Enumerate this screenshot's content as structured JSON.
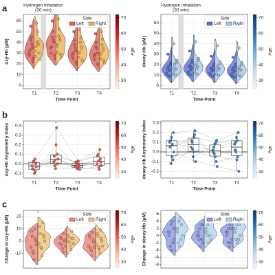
{
  "chart_data": [
    {
      "type": "split-violin",
      "panel_label": "a",
      "annotation": [
        "Hydrogen inhalation",
        "(30 min)"
      ],
      "ylabel": "oxy-Hb (μM)",
      "xlabel": "Time Point",
      "categories": [
        "T1",
        "T2",
        "T3",
        "T4"
      ],
      "legend_title": "Side",
      "legend": "upper right",
      "grid": true,
      "series": [
        {
          "name": "Left",
          "color": "#e0605a",
          "values": [
            [
              30,
              35,
              42,
              28,
              25,
              45,
              33,
              22,
              38,
              55
            ],
            [
              35,
              40,
              45,
              30,
              28,
              50,
              36,
              25,
              42,
              60
            ],
            [
              28,
              32,
              38,
              25,
              22,
              42,
              30,
              20,
              35,
              50
            ],
            [
              27,
              30,
              36,
              24,
              20,
              40,
              29,
              19,
              34,
              48
            ]
          ]
        },
        {
          "name": "Right",
          "color": "#f0b354",
          "values": [
            [
              32,
              38,
              40,
              27,
              30,
              50,
              36,
              24,
              41,
              58
            ],
            [
              36,
              42,
              46,
              31,
              29,
              52,
              38,
              26,
              44,
              62
            ],
            [
              30,
              34,
              40,
              26,
              24,
              44,
              31,
              22,
              36,
              52
            ],
            [
              29,
              33,
              38,
              25,
              23,
              43,
              30,
              21,
              35,
              50
            ]
          ]
        }
      ],
      "ylim": [
        -3,
        66
      ],
      "yticks": [
        0,
        10,
        20,
        30,
        40,
        50,
        60
      ],
      "colorbar": {
        "label": "Age",
        "colors": [
          "#fff0ea",
          "#fcbba1",
          "#fb6a4a",
          "#cb181d",
          "#67000d"
        ],
        "lim": [
          25,
          72
        ],
        "ticks": [
          30,
          40,
          50,
          60,
          70
        ]
      }
    },
    {
      "type": "split-violin",
      "annotation": [
        "Hydrogen inhalation",
        "(30 min)"
      ],
      "ylabel": "deoxy-Hb (μM)",
      "xlabel": "Time Point",
      "categories": [
        "T1",
        "T2",
        "T3",
        "T4"
      ],
      "legend_title": "Side",
      "legend": "upper right",
      "grid": true,
      "series": [
        {
          "name": "Left",
          "color": "#5b6fd6",
          "values": [
            [
              12,
              15,
              18,
              10,
              20,
              14,
              16,
              22,
              9,
              30
            ],
            [
              13,
              17,
              19,
              11,
              22,
              15,
              18,
              24,
              10,
              33
            ],
            [
              12,
              15,
              17,
              10,
              19,
              14,
              16,
              21,
              9,
              28
            ],
            [
              11,
              14,
              17,
              9,
              18,
              13,
              15,
              20,
              8,
              27
            ]
          ]
        },
        {
          "name": "Right",
          "color": "#a9c9e8",
          "values": [
            [
              13,
              16,
              20,
              11,
              22,
              15,
              17,
              24,
              10,
              40
            ],
            [
              14,
              18,
              21,
              12,
              24,
              16,
              19,
              26,
              11,
              42
            ],
            [
              13,
              16,
              19,
              11,
              21,
              15,
              17,
              23,
              10,
              38
            ],
            [
              12,
              15,
              18,
              10,
              20,
              14,
              16,
              22,
              9,
              36
            ]
          ]
        }
      ],
      "ylim": [
        -3,
        68
      ],
      "yticks": [
        0,
        10,
        20,
        30,
        40,
        50,
        60
      ],
      "colorbar": {
        "label": "Age",
        "colors": [
          "#f0f6fc",
          "#c6dbef",
          "#6baed6",
          "#2171b5",
          "#08306b"
        ],
        "lim": [
          25,
          72
        ],
        "ticks": [
          30,
          40,
          50,
          60,
          70
        ]
      }
    },
    {
      "type": "box-strip",
      "panel_label": "b",
      "ylabel": "oxy-Hb Asymmetry Index",
      "xlabel": "Time Point",
      "categories": [
        "T1",
        "T2",
        "T3",
        "T4"
      ],
      "grid": true,
      "point_color": "#e05a52",
      "hline": 0,
      "star": {
        "label": "*",
        "category": 1
      },
      "values": [
        [
          -0.02,
          -0.08,
          0.03,
          -0.05,
          0.0,
          -0.1,
          0.02,
          -0.03,
          0.05,
          -0.06
        ],
        [
          0.02,
          0.1,
          -0.05,
          0.08,
          0.0,
          0.2,
          -0.02,
          0.05,
          0.38,
          0.04
        ],
        [
          -0.03,
          0.0,
          -0.05,
          0.02,
          -0.02,
          -0.04,
          0.01,
          -0.06,
          0.03,
          -0.01
        ],
        [
          0.0,
          0.05,
          -0.04,
          0.08,
          0.02,
          -0.06,
          0.1,
          -0.02,
          0.15,
          0.03
        ]
      ],
      "ylim": [
        -0.15,
        0.45
      ],
      "yticks": [
        -0.1,
        {
          "value": 0,
          "label": "0.0"
        },
        0.1,
        0.2,
        0.3,
        0.4
      ],
      "colorbar": {
        "label": "Age",
        "colors": [
          "#fff0ea",
          "#fcbba1",
          "#fb6a4a",
          "#cb181d",
          "#67000d"
        ],
        "lim": [
          25,
          72
        ],
        "ticks": [
          30,
          40,
          50,
          60,
          70
        ]
      }
    },
    {
      "type": "box-strip",
      "ylabel": "deoxy-Hb Asymmetry Index",
      "xlabel": "Time Point",
      "categories": [
        "T1",
        "T2",
        "T3",
        "T4"
      ],
      "grid": true,
      "point_color": "#3f7fbf",
      "hline": 0,
      "values": [
        [
          0.1,
          -0.08,
          0.15,
          0.05,
          0.2,
          -0.05,
          0.12,
          0.0,
          0.08,
          -0.12
        ],
        [
          0.05,
          0.18,
          -0.05,
          0.12,
          0.22,
          0.0,
          0.1,
          -0.1,
          0.15,
          0.03
        ],
        [
          0.02,
          -0.1,
          0.08,
          0.0,
          0.12,
          -0.05,
          0.05,
          -0.15,
          0.1,
          -0.02
        ],
        [
          0.08,
          -0.05,
          0.15,
          0.02,
          0.2,
          -0.08,
          0.1,
          -0.2,
          0.12,
          0.0
        ]
      ],
      "ylim": [
        -0.27,
        0.32
      ],
      "yticks": [
        -0.2,
        -0.1,
        {
          "value": 0,
          "label": "0.0"
        },
        0.1,
        0.2,
        0.3
      ],
      "colorbar": {
        "label": "Age",
        "colors": [
          "#f0f6fc",
          "#c6dbef",
          "#6baed6",
          "#2171b5",
          "#08306b"
        ],
        "lim": [
          25,
          72
        ],
        "ticks": [
          30,
          40,
          50,
          60,
          70
        ]
      }
    },
    {
      "type": "split-violin",
      "panel_label": "c",
      "ylabel": "Change in oxy-Hb (μM)",
      "categories": [
        null,
        null,
        null
      ],
      "legend_title": "Side",
      "legend": "upper right",
      "grid": true,
      "star": {
        "label": "*",
        "category": 0
      },
      "series": [
        {
          "name": "Left",
          "color": "#e8857a",
          "values": [
            [
              -5,
              2,
              -10,
              8,
              0,
              -15,
              4,
              -3,
              10,
              -8
            ],
            [
              -2,
              0,
              -6,
              3,
              1,
              -9,
              2,
              -4,
              6,
              -3
            ],
            [
              -4,
              1,
              -8,
              5,
              -1,
              -12,
              3,
              -5,
              7,
              -6
            ]
          ]
        },
        {
          "name": "Right",
          "color": "#f2c27a",
          "values": [
            [
              -2,
              5,
              -6,
              12,
              3,
              -12,
              6,
              0,
              15,
              -5
            ],
            [
              0,
              2,
              -4,
              5,
              2,
              -7,
              3,
              -2,
              8,
              -1
            ],
            [
              -3,
              2,
              -7,
              6,
              0,
              -10,
              4,
              -4,
              9,
              -5
            ]
          ]
        }
      ],
      "ylim": [
        -22,
        25
      ],
      "yticks": [
        -10,
        0,
        10,
        20
      ],
      "colorbar": {
        "label": "Age",
        "colors": [
          "#fff0ea",
          "#fcbba1",
          "#fb6a4a",
          "#cb181d",
          "#67000d"
        ],
        "lim": [
          25,
          72
        ],
        "ticks": [
          30,
          40,
          50,
          60,
          70
        ]
      }
    },
    {
      "type": "split-violin",
      "ylabel": "Change in deoxy-Hb (μM)",
      "categories": [
        null,
        null,
        null
      ],
      "legend_title": "Side",
      "legend": "upper right",
      "grid": true,
      "series": [
        {
          "name": "Left",
          "color": "#8d9ae6",
          "values": [
            [
              1,
              -2,
              3,
              0,
              2,
              -4,
              1,
              -1,
              4,
              -3
            ],
            [
              0,
              -1,
              2,
              1,
              3,
              -3,
              0,
              -2,
              3,
              -1
            ],
            [
              1,
              -2,
              2,
              0,
              2,
              -3,
              1,
              -1,
              3,
              -2
            ]
          ]
        },
        {
          "name": "Right",
          "color": "#b8d4ee",
          "values": [
            [
              2,
              -1,
              4,
              1,
              3,
              -3,
              2,
              0,
              5,
              -2
            ],
            [
              1,
              0,
              3,
              2,
              4,
              -2,
              1,
              -1,
              4,
              0
            ],
            [
              2,
              -1,
              3,
              1,
              3,
              -2,
              2,
              0,
              4,
              -1
            ]
          ]
        }
      ],
      "ylim": [
        -9,
        7
      ],
      "yticks": [
        -8,
        -6,
        -4,
        -2,
        0,
        2,
        4,
        6
      ],
      "colorbar": {
        "label": "Age",
        "colors": [
          "#f0f6fc",
          "#c6dbef",
          "#6baed6",
          "#2171b5",
          "#08306b"
        ],
        "lim": [
          25,
          72
        ],
        "ticks": [
          30,
          40,
          50,
          60,
          70
        ]
      }
    }
  ]
}
